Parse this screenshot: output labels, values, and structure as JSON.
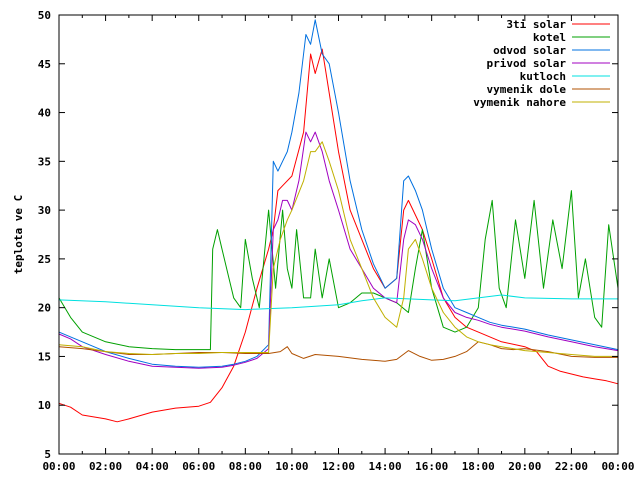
{
  "chart_data": {
    "type": "line",
    "title": "",
    "xlabel": "",
    "ylabel": "teplota ve C",
    "xlim": [
      0,
      24
    ],
    "ylim": [
      5,
      50
    ],
    "x_tick_labels": [
      "00:00",
      "02:00",
      "04:00",
      "06:00",
      "08:00",
      "10:00",
      "12:00",
      "14:00",
      "16:00",
      "18:00",
      "20:00",
      "22:00",
      "00:00"
    ],
    "y_tick_labels": [
      "5",
      "10",
      "15",
      "20",
      "25",
      "30",
      "35",
      "40",
      "45",
      "50"
    ],
    "grid": false,
    "legend_position": "top-right",
    "series": [
      {
        "name": "3ti solar",
        "color": "#ff0000",
        "x": [
          0,
          0.5,
          1,
          2,
          2.5,
          3,
          4,
          5,
          6,
          6.5,
          7,
          7.5,
          8,
          8.5,
          9,
          9.2,
          9.4,
          9.6,
          10,
          10.5,
          10.8,
          11,
          11.3,
          11.6,
          12,
          12.5,
          13,
          13.5,
          14,
          14.5,
          14.8,
          15,
          15.3,
          15.6,
          16,
          16.5,
          17,
          17.5,
          18,
          18.5,
          19,
          20,
          20.5,
          21,
          21.5,
          22,
          22.5,
          23,
          23.5,
          24
        ],
        "y": [
          10.2,
          9.8,
          9,
          8.6,
          8.3,
          8.6,
          9.3,
          9.7,
          9.9,
          10.3,
          11.8,
          14,
          17.5,
          22,
          26,
          28,
          32,
          32.5,
          33.5,
          38,
          46,
          44,
          46.5,
          42,
          36,
          30,
          27,
          24,
          22,
          23,
          30,
          31,
          29.5,
          28,
          25,
          21,
          19,
          18,
          17.5,
          17,
          16.5,
          16,
          15.5,
          14,
          13.5,
          13.2,
          12.9,
          12.7,
          12.5,
          12.2
        ]
      },
      {
        "name": "kotel",
        "color": "#00a000",
        "x": [
          0,
          0.5,
          1,
          2,
          3,
          4,
          5,
          6,
          6.5,
          6.6,
          6.8,
          7,
          7.3,
          7.5,
          7.8,
          8,
          8.3,
          8.6,
          9,
          9.3,
          9.6,
          9.8,
          10,
          10.2,
          10.5,
          10.8,
          11,
          11.3,
          11.6,
          12,
          12.5,
          13,
          13.5,
          14,
          14.5,
          15,
          15.3,
          15.6,
          16,
          16.5,
          17,
          17.5,
          18,
          18.3,
          18.6,
          18.9,
          19.2,
          19.6,
          20,
          20.4,
          20.8,
          21.2,
          21.6,
          22,
          22.3,
          22.6,
          23,
          23.3,
          23.6,
          24
        ],
        "y": [
          21,
          19,
          17.5,
          16.5,
          16,
          15.8,
          15.7,
          15.7,
          15.7,
          26,
          28,
          26,
          23,
          21,
          20,
          27,
          23,
          20,
          30,
          22,
          30,
          24,
          22,
          28,
          21,
          21,
          26,
          21,
          25,
          20,
          20.5,
          21.5,
          21.5,
          21,
          20.5,
          19.5,
          24,
          28,
          22,
          18,
          17.5,
          18,
          20,
          27,
          31,
          22,
          20,
          29,
          23,
          31,
          22,
          29,
          24,
          32,
          21,
          25,
          19,
          18,
          28.5,
          22
        ]
      },
      {
        "name": "odvod solar",
        "color": "#0070e0",
        "x": [
          0,
          0.5,
          1,
          2,
          3,
          4,
          5,
          6,
          7,
          7.5,
          8,
          8.5,
          9,
          9.2,
          9.4,
          9.6,
          9.8,
          10,
          10.3,
          10.6,
          10.8,
          11,
          11.3,
          11.6,
          12,
          12.5,
          13,
          13.5,
          14,
          14.5,
          14.8,
          15,
          15.3,
          15.6,
          16,
          16.5,
          17,
          17.5,
          18,
          18.5,
          19,
          20,
          21,
          22,
          23,
          24
        ],
        "y": [
          17.5,
          17,
          16.5,
          15.5,
          14.8,
          14.2,
          14,
          13.9,
          14,
          14.2,
          14.5,
          15,
          16.2,
          35,
          34,
          35,
          36,
          38,
          42,
          48,
          47,
          49.5,
          46,
          45,
          40,
          33,
          28,
          24.5,
          22,
          23,
          33,
          33.5,
          32,
          30,
          26,
          22,
          20,
          19.5,
          19,
          18.5,
          18.2,
          17.8,
          17.2,
          16.7,
          16.2,
          15.7
        ]
      },
      {
        "name": "privod solar",
        "color": "#a000c0",
        "x": [
          0,
          0.5,
          1,
          2,
          3,
          4,
          5,
          6,
          7,
          7.5,
          8,
          8.5,
          9,
          9.2,
          9.4,
          9.6,
          9.8,
          10,
          10.3,
          10.6,
          10.8,
          11,
          11.3,
          11.6,
          12,
          12.5,
          13,
          13.5,
          14,
          14.5,
          14.8,
          15,
          15.3,
          15.6,
          16,
          16.5,
          17,
          17.5,
          18,
          18.5,
          19,
          20,
          21,
          22,
          23,
          24
        ],
        "y": [
          17.3,
          16.8,
          16,
          15.2,
          14.5,
          14,
          13.9,
          13.8,
          13.9,
          14.1,
          14.4,
          14.8,
          15.8,
          28,
          29,
          31,
          31,
          30,
          33,
          38,
          37,
          38,
          36,
          33,
          30,
          26,
          24,
          22,
          21,
          20.5,
          27,
          29,
          28.5,
          27,
          24,
          21,
          19.5,
          19,
          18.7,
          18.3,
          18,
          17.6,
          17,
          16.5,
          16,
          15.6
        ]
      },
      {
        "name": "kutloch",
        "color": "#00e0e0",
        "x": [
          0,
          2,
          4,
          6,
          8,
          9,
          10,
          12,
          13,
          14,
          16,
          17,
          18,
          19,
          20,
          22,
          24
        ],
        "y": [
          20.8,
          20.6,
          20.3,
          20,
          19.8,
          19.9,
          20,
          20.3,
          20.7,
          21,
          20.8,
          20.7,
          21,
          21.3,
          21,
          20.9,
          20.9
        ]
      },
      {
        "name": "vymenik dole",
        "color": "#b05000",
        "x": [
          0,
          1,
          2,
          3,
          4,
          5,
          6,
          7,
          8,
          9,
          9.5,
          9.8,
          10,
          10.5,
          11,
          12,
          13,
          14,
          14.5,
          15,
          15.5,
          16,
          16.5,
          17,
          17.5,
          18,
          18.5,
          19,
          19.5,
          20,
          21,
          22,
          23,
          24
        ],
        "y": [
          16,
          15.8,
          15.5,
          15.2,
          15.2,
          15.3,
          15.4,
          15.4,
          15.3,
          15.3,
          15.5,
          16,
          15.3,
          14.8,
          15.2,
          15,
          14.7,
          14.5,
          14.7,
          15.6,
          15,
          14.6,
          14.7,
          15,
          15.5,
          16.5,
          16.2,
          15.8,
          15.7,
          15.8,
          15.5,
          15,
          14.9,
          14.9
        ]
      },
      {
        "name": "vymenik nahore",
        "color": "#c0b000",
        "x": [
          0,
          1,
          2,
          3,
          4,
          5,
          6,
          7,
          8,
          9,
          9.2,
          9.5,
          9.8,
          10,
          10.5,
          10.8,
          11,
          11.3,
          11.6,
          12,
          12.5,
          13,
          13.5,
          14,
          14.5,
          14.8,
          15,
          15.3,
          15.6,
          16,
          16.5,
          17,
          17.5,
          18,
          18.5,
          19,
          20,
          21,
          22,
          23,
          24
        ],
        "y": [
          16.2,
          16,
          15.5,
          15.3,
          15.2,
          15.3,
          15.3,
          15.4,
          15.4,
          15.4,
          24,
          27,
          29,
          30,
          33,
          36,
          36,
          37,
          35,
          32,
          27,
          24,
          21,
          19,
          18,
          21,
          26,
          27,
          25,
          22,
          19.5,
          18,
          17,
          16.5,
          16.2,
          16,
          15.6,
          15.4,
          15.2,
          15,
          15
        ]
      }
    ]
  }
}
